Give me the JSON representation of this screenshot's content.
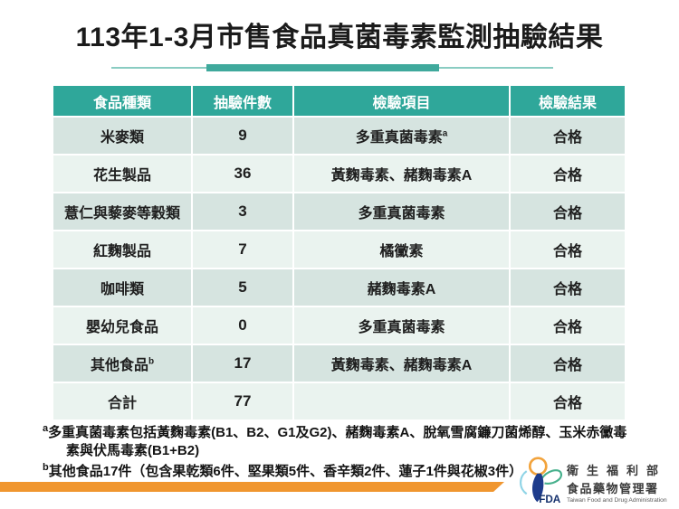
{
  "title": "113年1-3月市售食品真菌毒素監測抽驗結果",
  "table": {
    "headers": [
      "食品種類",
      "抽驗件數",
      "檢驗項目",
      "檢驗結果"
    ],
    "rows": [
      {
        "category": "米麥類",
        "count": "9",
        "item": "多重真菌毒素",
        "item_sup": "a",
        "result": "合格"
      },
      {
        "category": "花生製品",
        "count": "36",
        "item": "黃麴毒素、赭麴毒素A",
        "result": "合格"
      },
      {
        "category": "薏仁與藜麥等穀類",
        "count": "3",
        "item": "多重真菌毒素",
        "result": "合格"
      },
      {
        "category": "紅麴製品",
        "count": "7",
        "item": "橘黴素",
        "result": "合格"
      },
      {
        "category": "咖啡類",
        "count": "5",
        "item": "赭麴毒素A",
        "result": "合格"
      },
      {
        "category": "嬰幼兒食品",
        "count": "0",
        "item": "多重真菌毒素",
        "result": "合格"
      },
      {
        "category": "其他食品",
        "category_sup": "b",
        "count": "17",
        "item": "黃麴毒素、赭麴毒素A",
        "result": "合格"
      },
      {
        "category": "合計",
        "count": "77",
        "item": "",
        "result": "合格"
      }
    ]
  },
  "footnotes": [
    {
      "sup": "a",
      "text": "多重真菌毒素包括黃麴毒素(B1、B2、G1及G2)、赭麴毒素A、脫氧雪腐鐮刀菌烯醇、玉米赤黴毒素與伏馬毒素(B1+B2)"
    },
    {
      "sup": "b",
      "text": "其他食品17件（包含果乾類6件、堅果類5件、香辛類2件、蓮子1件與花椒3件）"
    }
  ],
  "logo": {
    "acronym": "FDA",
    "org_line1": "衛生福利部",
    "org_line2": "食品藥物管理署",
    "org_line3": "Taiwan Food and Drug Administration"
  },
  "chart_data": {
    "type": "table",
    "title": "113年1-3月市售食品真菌毒素監測抽驗結果",
    "columns": [
      "食品種類",
      "抽驗件數",
      "檢驗項目",
      "檢驗結果"
    ],
    "rows": [
      [
        "米麥類",
        9,
        "多重真菌毒素",
        "合格"
      ],
      [
        "花生製品",
        36,
        "黃麴毒素、赭麴毒素A",
        "合格"
      ],
      [
        "薏仁與藜麥等穀類",
        3,
        "多重真菌毒素",
        "合格"
      ],
      [
        "紅麴製品",
        7,
        "橘黴素",
        "合格"
      ],
      [
        "咖啡類",
        5,
        "赭麴毒素A",
        "合格"
      ],
      [
        "嬰幼兒食品",
        0,
        "多重真菌毒素",
        "合格"
      ],
      [
        "其他食品",
        17,
        "黃麴毒素、赭麴毒素A",
        "合格"
      ],
      [
        "合計",
        77,
        "",
        "合格"
      ]
    ]
  },
  "colors": {
    "header_bg": "#2fa79a",
    "row_dark": "#d6e4e0",
    "row_light": "#eaf3ef",
    "accent_orange": "#f0962f",
    "underline_thin": "#8accc2",
    "underline_thick": "#3fa99c",
    "logo_orange": "#f2a33c",
    "logo_blue": "#1e3c8c",
    "logo_green": "#46b08c",
    "logo_lightblue": "#8fd4e6"
  }
}
